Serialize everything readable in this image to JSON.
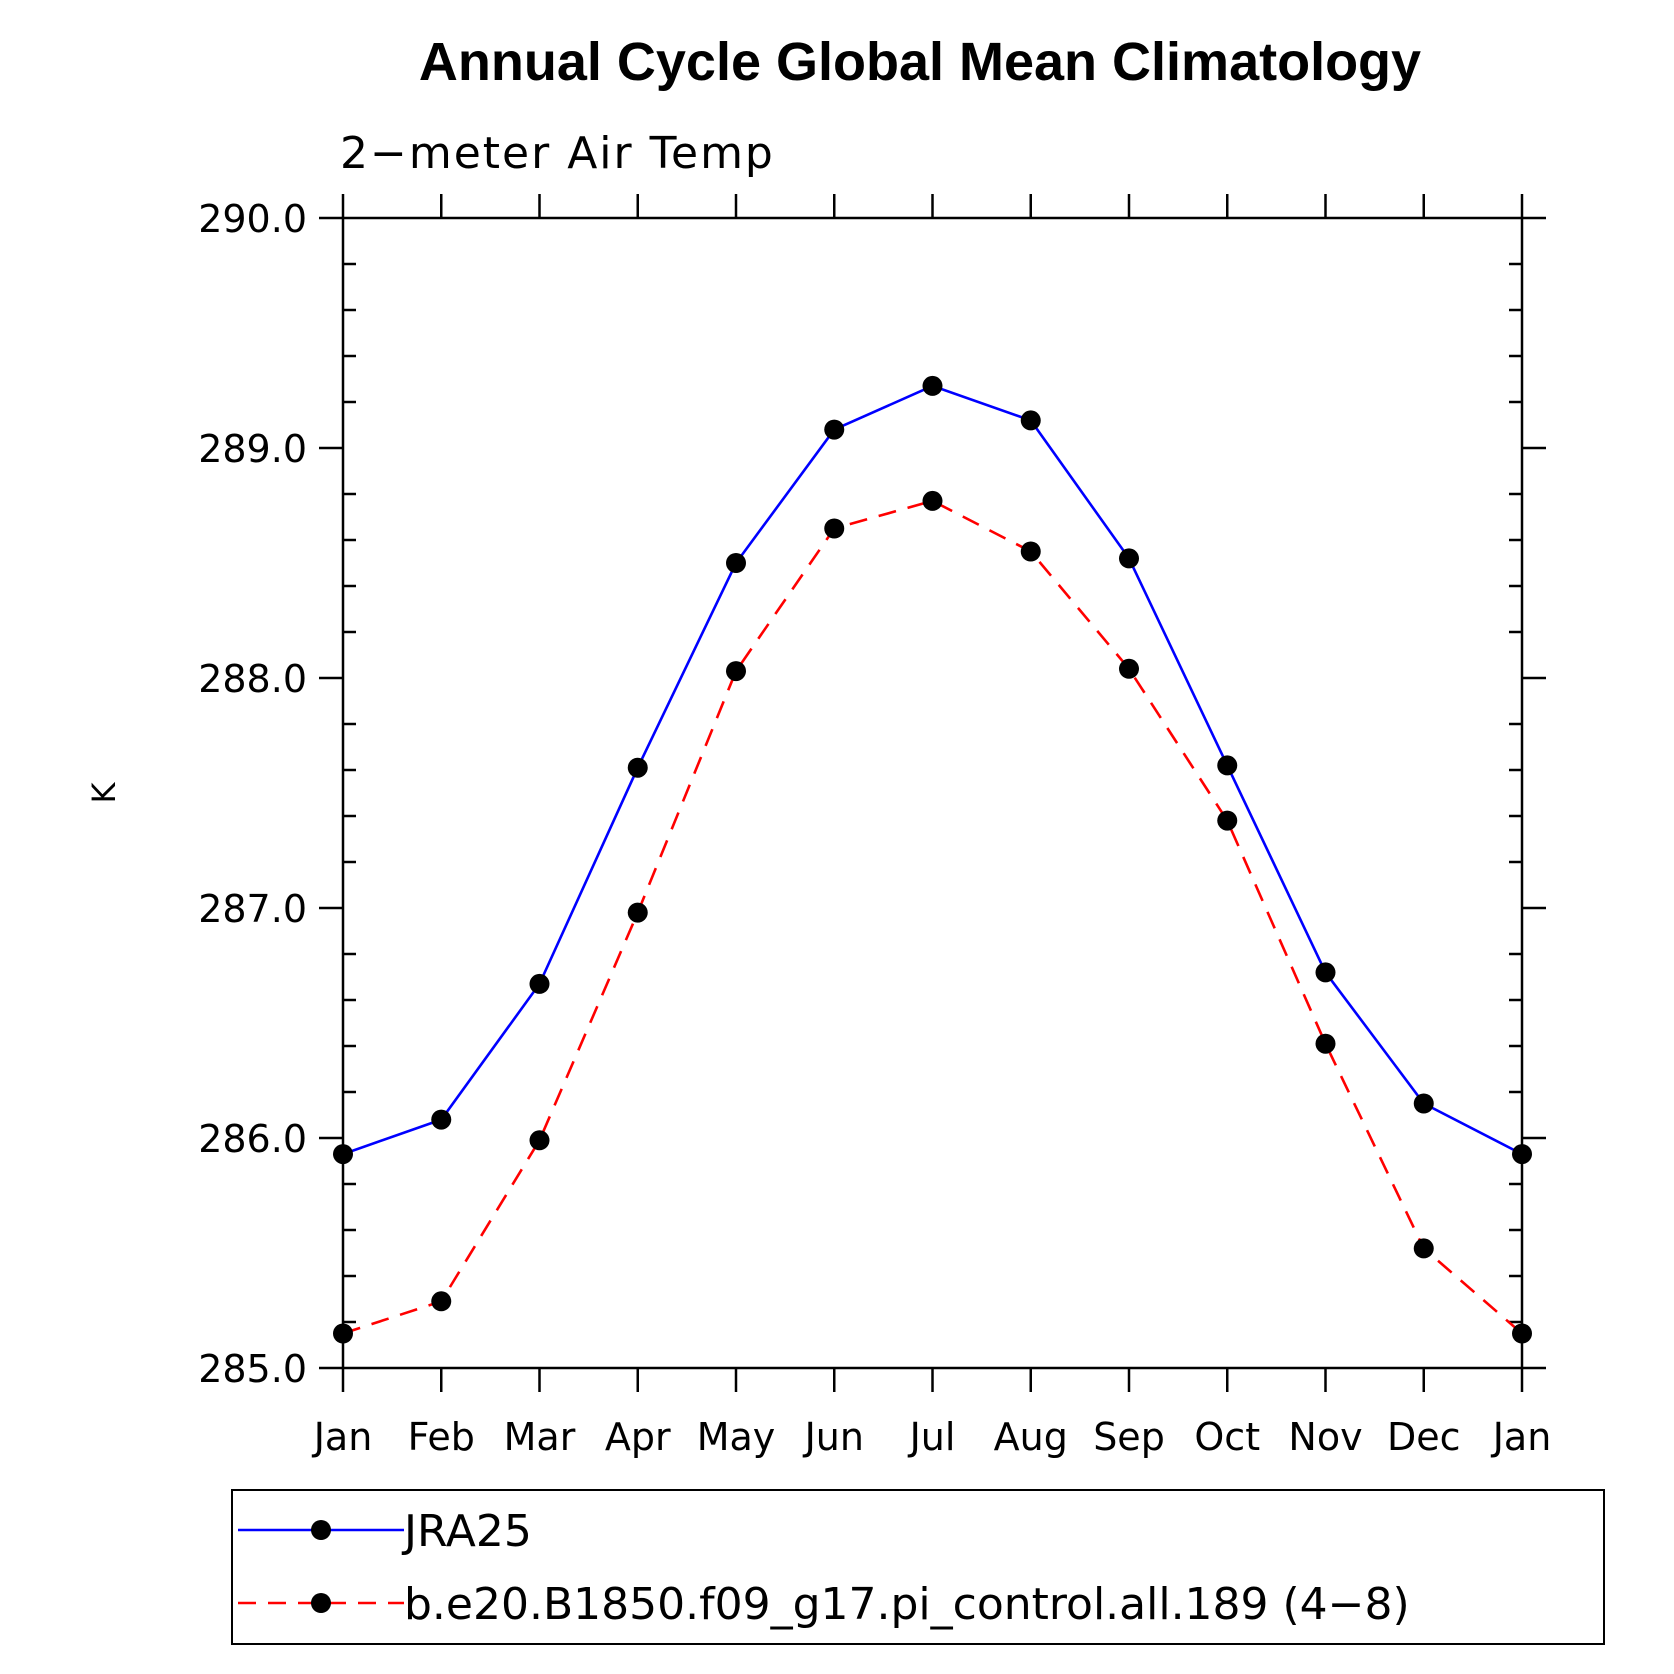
{
  "chart_data": {
    "type": "line",
    "title": "Annual Cycle Global Mean Climatology",
    "subtitle": "2−meter Air Temp",
    "ylabel": "K",
    "xlabel": "",
    "categories": [
      "Jan",
      "Feb",
      "Mar",
      "Apr",
      "May",
      "Jun",
      "Jul",
      "Aug",
      "Sep",
      "Oct",
      "Nov",
      "Dec",
      "Jan"
    ],
    "ylim": [
      285.0,
      290.0
    ],
    "yticks": [
      285.0,
      286.0,
      287.0,
      288.0,
      289.0,
      290.0
    ],
    "ytick_labels": [
      "285.0",
      "286.0",
      "287.0",
      "288.0",
      "289.0",
      "290.0"
    ],
    "grid": false,
    "legend_position": "bottom",
    "series": [
      {
        "name": "JRA25",
        "color": "#0000ff",
        "line_style": "solid",
        "marker": "filled-circle",
        "marker_color": "#000000",
        "values": [
          285.93,
          286.08,
          286.67,
          287.61,
          288.5,
          289.08,
          289.27,
          289.12,
          288.52,
          287.62,
          286.72,
          286.15,
          285.93
        ]
      },
      {
        "name": "b.e20.B1850.f09_g17.pi_control.all.189 (4−8)",
        "color": "#ff0000",
        "line_style": "dashed",
        "marker": "filled-circle",
        "marker_color": "#000000",
        "values": [
          285.15,
          285.29,
          285.99,
          286.98,
          288.03,
          288.65,
          288.77,
          288.55,
          288.04,
          287.38,
          286.41,
          285.52,
          285.15
        ]
      }
    ]
  }
}
